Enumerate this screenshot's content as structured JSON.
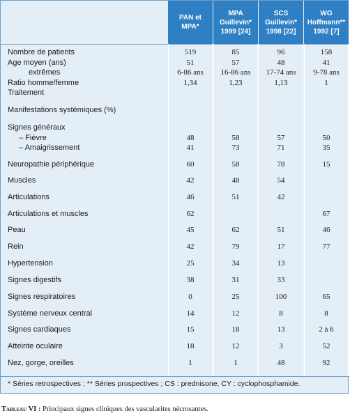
{
  "columns": [
    {
      "lines": [
        "PAN et",
        "MPA*"
      ]
    },
    {
      "lines": [
        "MPA",
        "Guillevin*",
        "1999 [24]"
      ]
    },
    {
      "lines": [
        "SCS",
        "Guillevin*",
        "1998 [22]"
      ]
    },
    {
      "lines": [
        "WG",
        "Hoffmann**",
        "1992 [7]"
      ]
    }
  ],
  "rows": [
    {
      "label": "Nombre de patients",
      "indent": 0,
      "values": [
        "519",
        "85",
        "96",
        "158"
      ]
    },
    {
      "label": "Age  moyen (ans)",
      "indent": 0,
      "values": [
        "51",
        "57",
        "48",
        "41"
      ]
    },
    {
      "label": "extrêmes",
      "indent": 2,
      "values": [
        "6-86 ans",
        "16-86 ans",
        "17-74 ans",
        "9-78 ans"
      ]
    },
    {
      "label": "Ratio homme/femme",
      "indent": 0,
      "values": [
        "1,34",
        "1,23",
        "1,13",
        "1"
      ]
    },
    {
      "label": "Traitement",
      "indent": 0,
      "values": [
        "",
        "",
        "",
        ""
      ]
    },
    {
      "label": "Manifestations systémiques (%)",
      "indent": 0,
      "values": [
        "",
        "",
        "",
        ""
      ]
    },
    {
      "label": "Signes généraux",
      "indent": 0,
      "values": [
        "",
        "",
        "",
        ""
      ]
    },
    {
      "label": "– Fièvre",
      "indent": 1,
      "values": [
        "48",
        "58",
        "57",
        "50"
      ]
    },
    {
      "label": "– Amaigrissement",
      "indent": 1,
      "values": [
        "41",
        "73",
        "71",
        "35"
      ]
    },
    {
      "label": "Neuropathie périphérique",
      "indent": 0,
      "values": [
        "60",
        "58",
        "78",
        "15"
      ]
    },
    {
      "label": "Muscles",
      "indent": 0,
      "values": [
        "42",
        "48",
        "54",
        ""
      ]
    },
    {
      "label": "Articulations",
      "indent": 0,
      "values": [
        "46",
        "51",
        "42",
        ""
      ]
    },
    {
      "label": "Articulations et muscles",
      "indent": 0,
      "values": [
        "62",
        "",
        "",
        "67"
      ]
    },
    {
      "label": "Peau",
      "indent": 0,
      "values": [
        "45",
        "62",
        "51",
        "46"
      ]
    },
    {
      "label": "Rein",
      "indent": 0,
      "values": [
        "42",
        "79",
        "17",
        "77"
      ]
    },
    {
      "label": "Hypertension",
      "indent": 0,
      "values": [
        "25",
        "34",
        "13",
        ""
      ]
    },
    {
      "label": "Signes digestifs",
      "indent": 0,
      "values": [
        "38",
        "31",
        "33",
        ""
      ]
    },
    {
      "label": "Signes respiratoires",
      "indent": 0,
      "values": [
        "0",
        "25",
        "100",
        "65"
      ]
    },
    {
      "label": "Système nerveux central",
      "indent": 0,
      "values": [
        "14",
        "12",
        "8",
        "8"
      ]
    },
    {
      "label": "Signes cardiaques",
      "indent": 0,
      "values": [
        "15",
        "18",
        "13",
        "2 à 6"
      ]
    },
    {
      "label": "Atteinte oculaire",
      "indent": 0,
      "values": [
        "18",
        "12",
        "3",
        "52"
      ]
    },
    {
      "label": "Nez, gorge, oreilles",
      "indent": 0,
      "values": [
        "1",
        "1",
        "48",
        "92"
      ]
    }
  ],
  "footnote": "* Séries retrospectives ; ** Séries prospectives ; CS : prednisone, CY : cyclophosphamide.",
  "caption": {
    "label": "Tableau VI :",
    "text": " Principaux signes cliniques des vascularites nécrosantes."
  },
  "colors": {
    "header": "#2e7fc3",
    "panel": "#e4eef6",
    "border": "#6f9cc6"
  }
}
